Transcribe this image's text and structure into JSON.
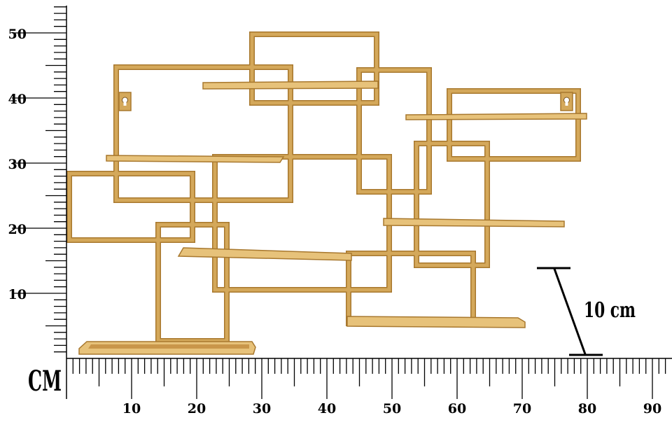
{
  "photo": {
    "subject": "wall-shelf-icon",
    "frame_color": "#d4a85a",
    "frame_shadow": "#a8782e",
    "frame_highlight": "#eed596"
  },
  "ruler": {
    "unit": "CM",
    "x_labels": [
      "10",
      "20",
      "30",
      "40",
      "50",
      "60",
      "70",
      "80",
      "90"
    ],
    "y_labels": [
      "10",
      "20",
      "30",
      "40",
      "50"
    ]
  },
  "scale_bar": {
    "label": "10 cm"
  }
}
